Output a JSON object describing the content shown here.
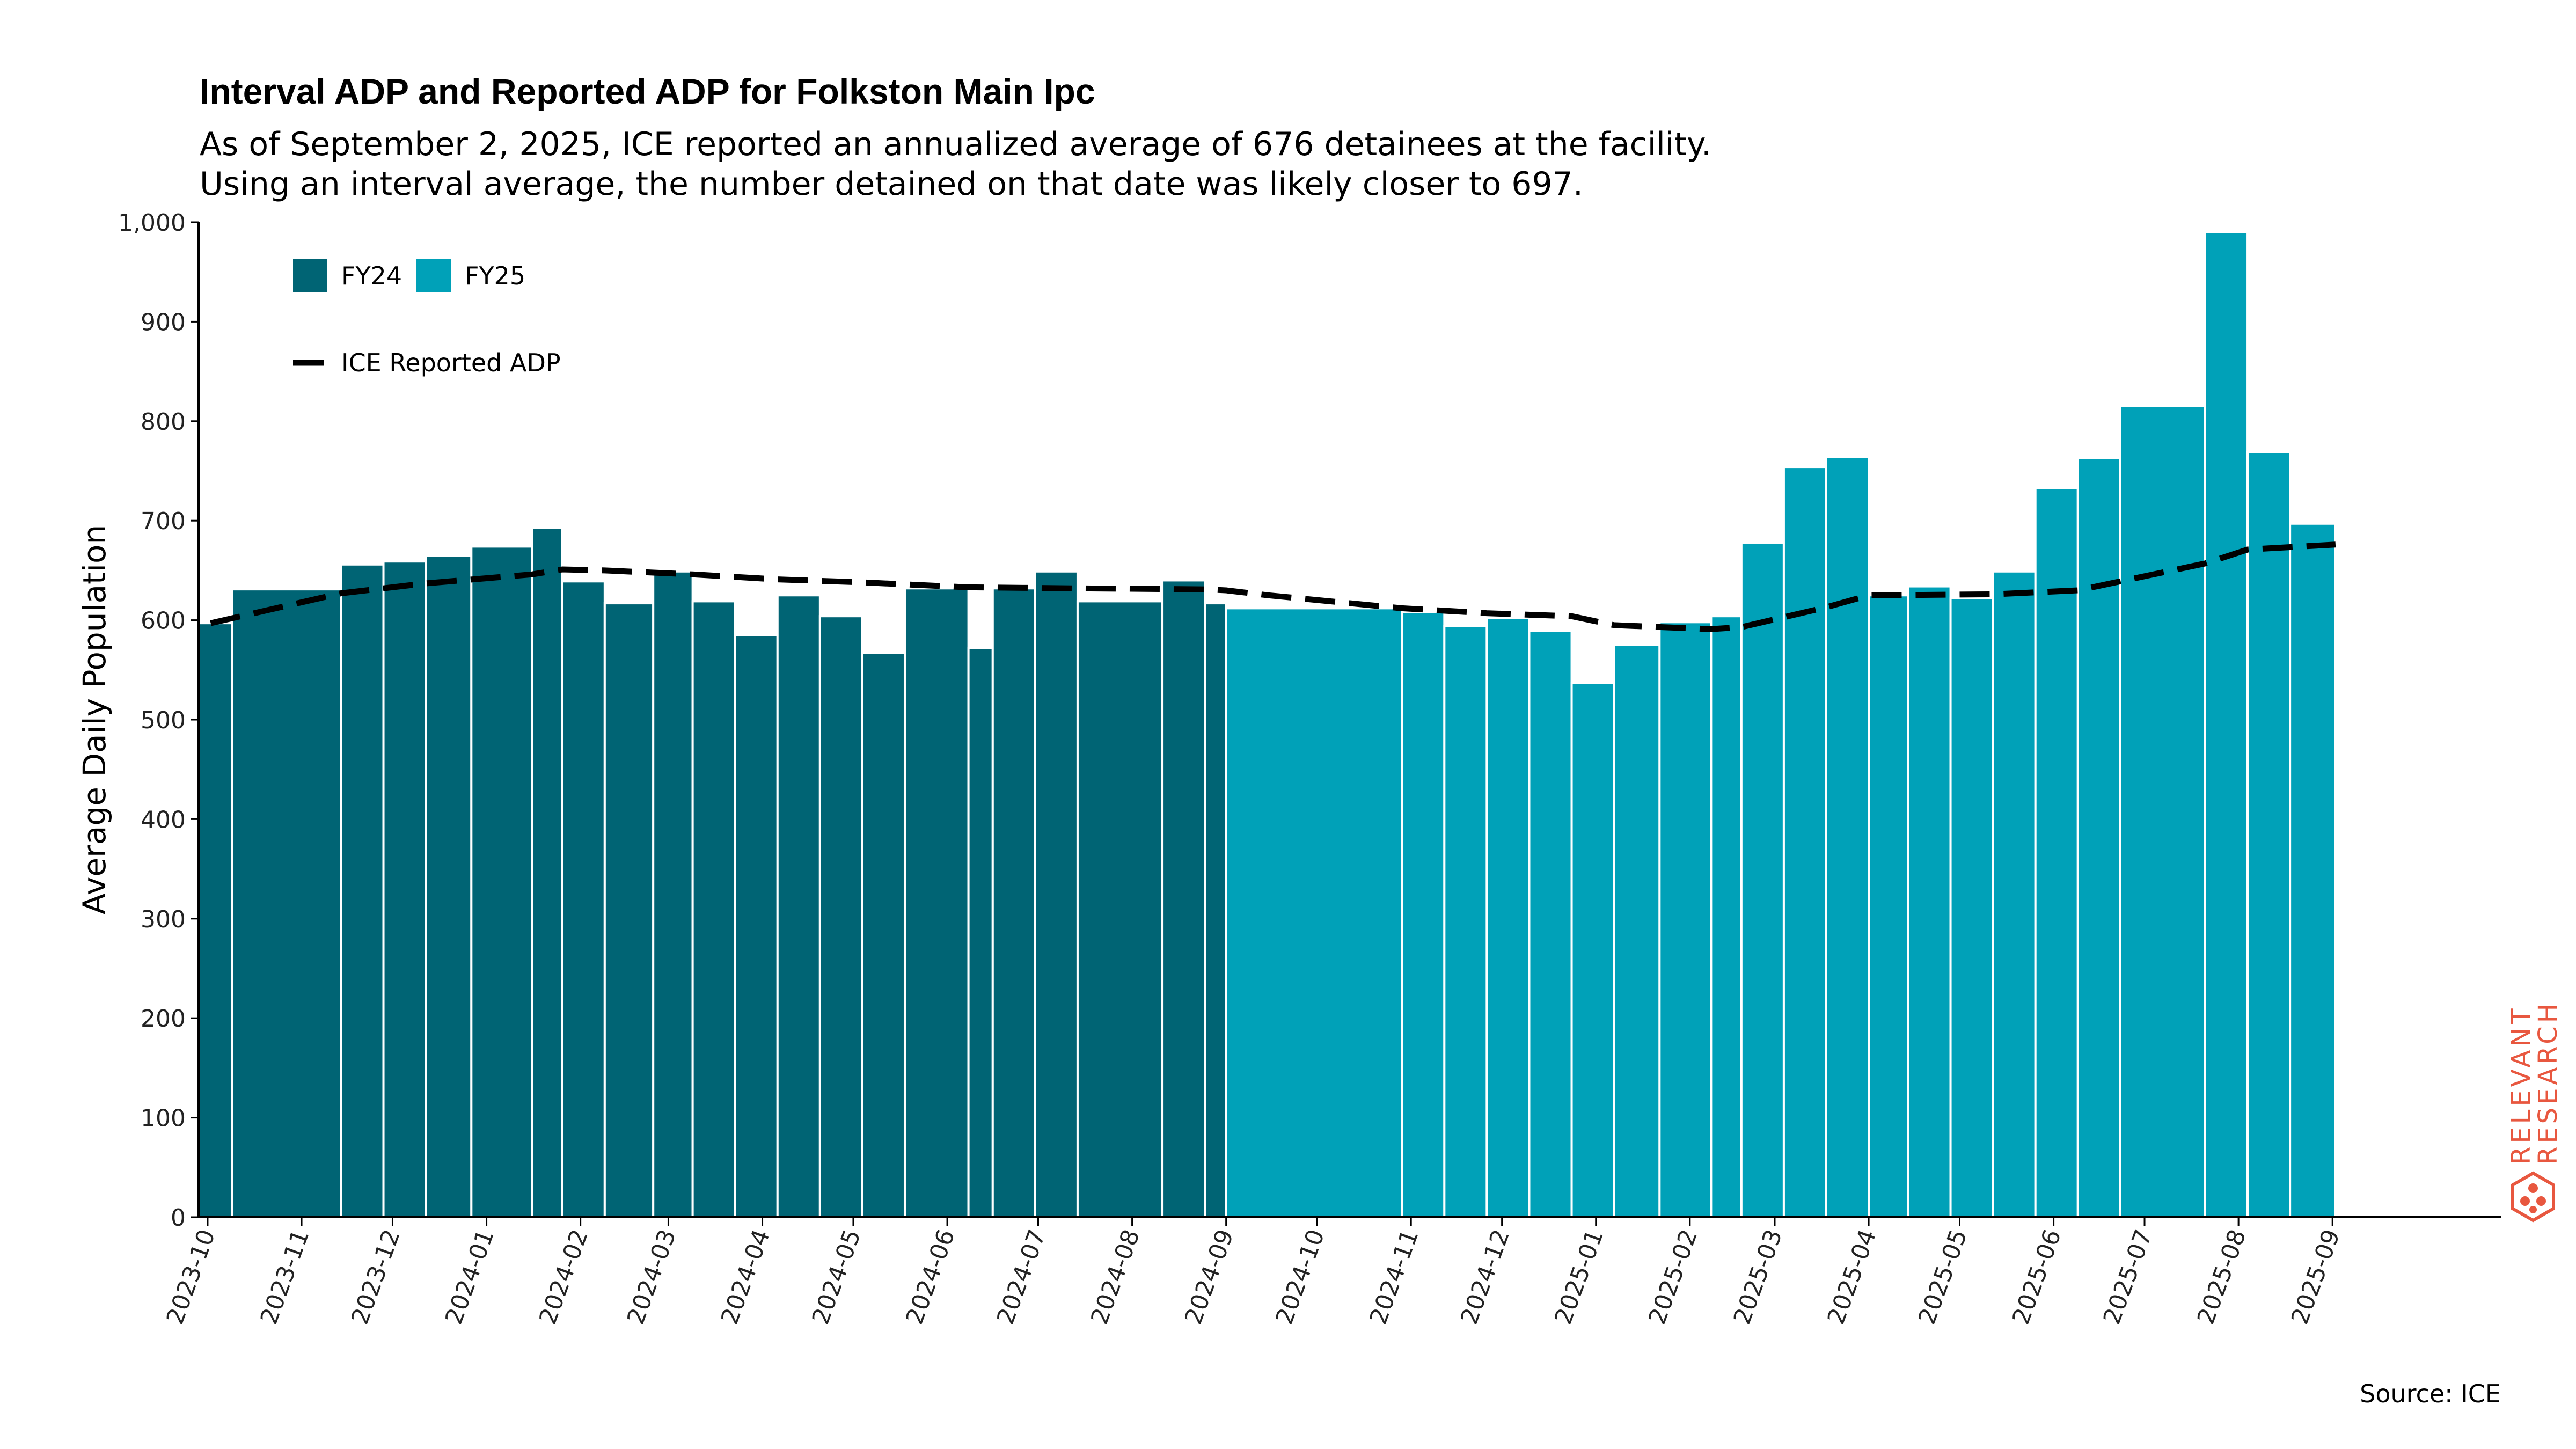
{
  "title": "Interval ADP and Reported ADP for Folkston Main Ipc",
  "subtitle_line1": "As of September 2, 2025, ICE reported an annualized average of 676 detainees at the facility.",
  "subtitle_line2": "Using an interval average, the number detained on that date was likely closer to 697.",
  "source": "Source: ICE",
  "logo": {
    "line1": "RELEVANT",
    "line2": "RESEARCH",
    "icon": "hexagon-dots-icon",
    "color": "#e8573f"
  },
  "colors": {
    "fy24": "#006474",
    "fy25": "#00a1b8",
    "line": "#000000"
  },
  "chart_data": {
    "type": "bar",
    "ylabel": "Average Daily Population",
    "ylim": [
      0,
      1000
    ],
    "yticks": [
      0,
      100,
      200,
      300,
      400,
      500,
      600,
      700,
      800,
      900,
      1000
    ],
    "ytick_labels": [
      "0",
      "100",
      "200",
      "300",
      "400",
      "500",
      "600",
      "700",
      "800",
      "900",
      "1,000"
    ],
    "x_start": "2023-09-28",
    "x_end": "2025-09-30",
    "xticks": [
      "2023-10",
      "2023-11",
      "2023-12",
      "2024-01",
      "2024-02",
      "2024-03",
      "2024-04",
      "2024-05",
      "2024-06",
      "2024-07",
      "2024-08",
      "2024-09",
      "2024-10",
      "2024-11",
      "2024-12",
      "2025-01",
      "2025-02",
      "2025-03",
      "2025-04",
      "2025-05",
      "2025-06",
      "2025-07",
      "2025-08",
      "2025-09"
    ],
    "legend": {
      "placement": "top-left",
      "fy24": "FY24",
      "fy25": "FY25",
      "line": "ICE Reported ADP"
    },
    "series": [
      {
        "name": "FY24",
        "bars": [
          {
            "start": "2023-09-28",
            "end": "2023-10-09",
            "value": 597
          },
          {
            "start": "2023-10-09",
            "end": "2023-11-14",
            "value": 631
          },
          {
            "start": "2023-11-14",
            "end": "2023-11-28",
            "value": 656
          },
          {
            "start": "2023-11-28",
            "end": "2023-12-12",
            "value": 659
          },
          {
            "start": "2023-12-12",
            "end": "2023-12-27",
            "value": 665
          },
          {
            "start": "2023-12-27",
            "end": "2024-01-16",
            "value": 674
          },
          {
            "start": "2024-01-16",
            "end": "2024-01-26",
            "value": 693
          },
          {
            "start": "2024-01-26",
            "end": "2024-02-09",
            "value": 639
          },
          {
            "start": "2024-02-09",
            "end": "2024-02-25",
            "value": 617
          },
          {
            "start": "2024-02-25",
            "end": "2024-03-09",
            "value": 649
          },
          {
            "start": "2024-03-09",
            "end": "2024-03-23",
            "value": 619
          },
          {
            "start": "2024-03-23",
            "end": "2024-04-06",
            "value": 585
          },
          {
            "start": "2024-04-06",
            "end": "2024-04-20",
            "value": 625
          },
          {
            "start": "2024-04-20",
            "end": "2024-05-04",
            "value": 604
          },
          {
            "start": "2024-05-04",
            "end": "2024-05-18",
            "value": 567
          },
          {
            "start": "2024-05-18",
            "end": "2024-06-08",
            "value": 632
          },
          {
            "start": "2024-06-08",
            "end": "2024-06-16",
            "value": 572
          },
          {
            "start": "2024-06-16",
            "end": "2024-06-30",
            "value": 632
          },
          {
            "start": "2024-06-30",
            "end": "2024-07-14",
            "value": 649
          },
          {
            "start": "2024-07-14",
            "end": "2024-08-11",
            "value": 619
          },
          {
            "start": "2024-08-11",
            "end": "2024-08-25",
            "value": 640
          },
          {
            "start": "2024-08-25",
            "end": "2024-09-01",
            "value": 617
          }
        ]
      },
      {
        "name": "FY25",
        "bars": [
          {
            "start": "2024-09-01",
            "end": "2024-10-29",
            "value": 612
          },
          {
            "start": "2024-10-29",
            "end": "2024-11-12",
            "value": 608
          },
          {
            "start": "2024-11-12",
            "end": "2024-11-26",
            "value": 594
          },
          {
            "start": "2024-11-26",
            "end": "2024-12-10",
            "value": 602
          },
          {
            "start": "2024-12-10",
            "end": "2024-12-24",
            "value": 589
          },
          {
            "start": "2024-12-24",
            "end": "2025-01-07",
            "value": 537
          },
          {
            "start": "2025-01-07",
            "end": "2025-01-22",
            "value": 575
          },
          {
            "start": "2025-01-22",
            "end": "2025-02-08",
            "value": 598
          },
          {
            "start": "2025-02-08",
            "end": "2025-02-18",
            "value": 604
          },
          {
            "start": "2025-02-18",
            "end": "2025-03-04",
            "value": 678
          },
          {
            "start": "2025-03-04",
            "end": "2025-03-18",
            "value": 754
          },
          {
            "start": "2025-03-18",
            "end": "2025-04-01",
            "value": 764
          },
          {
            "start": "2025-04-01",
            "end": "2025-04-14",
            "value": 625
          },
          {
            "start": "2025-04-14",
            "end": "2025-04-28",
            "value": 634
          },
          {
            "start": "2025-04-28",
            "end": "2025-05-12",
            "value": 622
          },
          {
            "start": "2025-05-12",
            "end": "2025-05-26",
            "value": 649
          },
          {
            "start": "2025-05-26",
            "end": "2025-06-09",
            "value": 733
          },
          {
            "start": "2025-06-09",
            "end": "2025-06-23",
            "value": 763
          },
          {
            "start": "2025-06-23",
            "end": "2025-07-21",
            "value": 815
          },
          {
            "start": "2025-07-21",
            "end": "2025-08-04",
            "value": 990
          },
          {
            "start": "2025-08-04",
            "end": "2025-08-18",
            "value": 769
          },
          {
            "start": "2025-08-18",
            "end": "2025-09-02",
            "value": 697
          }
        ]
      }
    ],
    "line": {
      "name": "ICE Reported ADP",
      "points": [
        {
          "date": "2023-10-02",
          "value": 597
        },
        {
          "date": "2023-11-14",
          "value": 627
        },
        {
          "date": "2023-12-12",
          "value": 637
        },
        {
          "date": "2024-01-16",
          "value": 646
        },
        {
          "date": "2024-01-26",
          "value": 651
        },
        {
          "date": "2024-02-09",
          "value": 650
        },
        {
          "date": "2024-03-09",
          "value": 646
        },
        {
          "date": "2024-04-06",
          "value": 641
        },
        {
          "date": "2024-05-04",
          "value": 638
        },
        {
          "date": "2024-06-08",
          "value": 633
        },
        {
          "date": "2024-07-14",
          "value": 632
        },
        {
          "date": "2024-08-25",
          "value": 631
        },
        {
          "date": "2024-09-01",
          "value": 630
        },
        {
          "date": "2024-09-15",
          "value": 625
        },
        {
          "date": "2024-10-29",
          "value": 612
        },
        {
          "date": "2024-11-26",
          "value": 607
        },
        {
          "date": "2024-12-24",
          "value": 604
        },
        {
          "date": "2025-01-07",
          "value": 595
        },
        {
          "date": "2025-02-08",
          "value": 591
        },
        {
          "date": "2025-02-18",
          "value": 593
        },
        {
          "date": "2025-03-18",
          "value": 613
        },
        {
          "date": "2025-04-01",
          "value": 625
        },
        {
          "date": "2025-05-12",
          "value": 626
        },
        {
          "date": "2025-06-09",
          "value": 630
        },
        {
          "date": "2025-07-21",
          "value": 657
        },
        {
          "date": "2025-08-04",
          "value": 671
        },
        {
          "date": "2025-09-02",
          "value": 676
        }
      ]
    }
  }
}
